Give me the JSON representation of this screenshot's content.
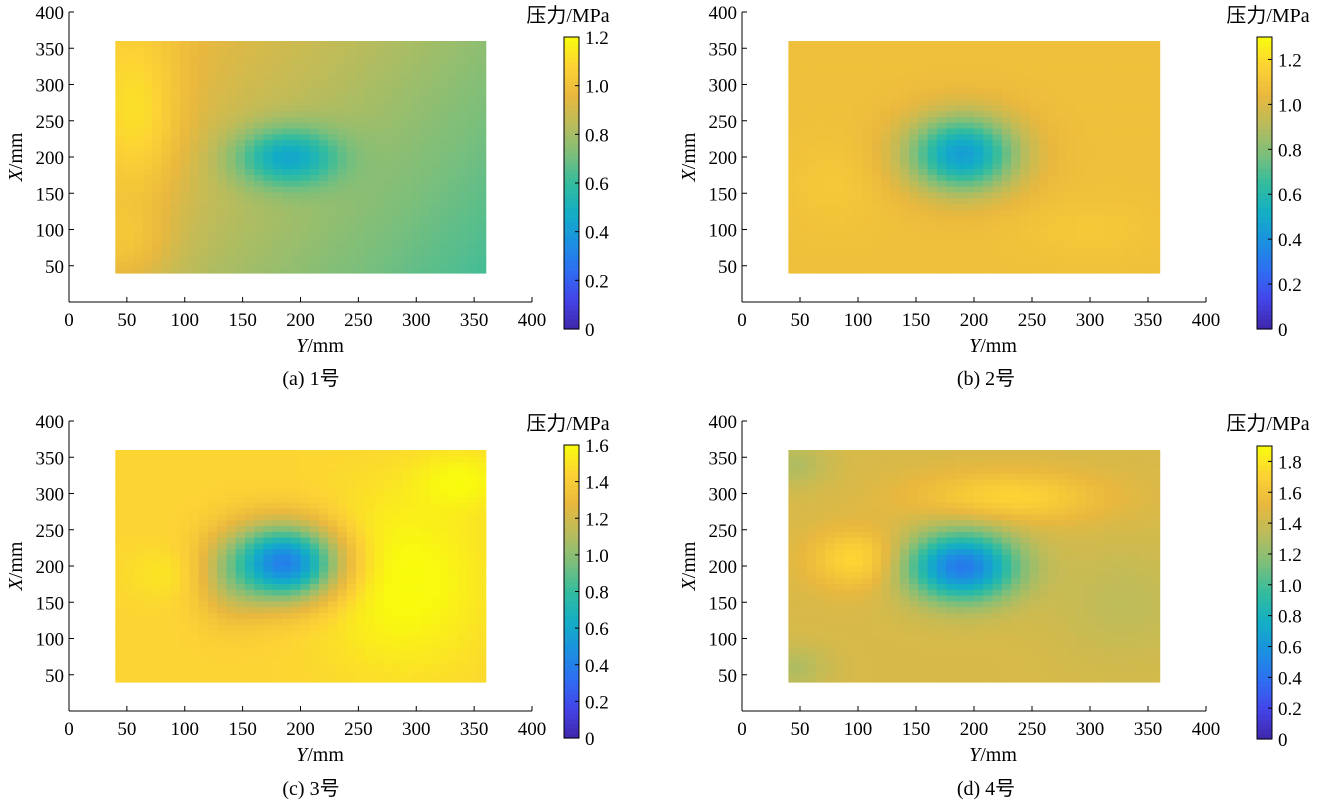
{
  "colormap": [
    "#3e26a8",
    "#4443e8",
    "#2f6df3",
    "#1b91e0",
    "#13aec5",
    "#33bc9e",
    "#7cbf7b",
    "#b9bc5c",
    "#e9b83e",
    "#fcd235",
    "#f9fb0e"
  ],
  "chart_data": [
    {
      "type": "heatmap",
      "caption": "(a)  1号",
      "xlabel_var": "Y",
      "xlabel_unit": "/mm",
      "ylabel_var": "X",
      "ylabel_unit": "/mm",
      "xlim": [
        0,
        400
      ],
      "ylim": [
        0,
        400
      ],
      "xticks": [
        0,
        50,
        100,
        150,
        200,
        250,
        300,
        350,
        400
      ],
      "yticks": [
        50,
        100,
        150,
        200,
        250,
        300,
        350,
        400
      ],
      "data_extent": {
        "x": [
          40,
          360
        ],
        "y": [
          40,
          360
        ]
      },
      "colorbar": {
        "title": "压力/MPa",
        "min": 0,
        "max": 1.2,
        "ticks": [
          "0",
          "0.2",
          "0.4",
          "0.6",
          "0.8",
          "1.0",
          "1.2"
        ]
      },
      "field": {
        "base": 0.82,
        "xslope": -0.0008,
        "xmid": 200,
        "yslope": 0.0004,
        "ymid": 200,
        "min_at": [
          190,
          200
        ],
        "min_value": 0.45,
        "spread": [
          42,
          38
        ],
        "bumps": [
          {
            "at": [
              60,
              250
            ],
            "value": 0.98,
            "spread": [
              40,
              120
            ]
          },
          {
            "at": [
              50,
              80
            ],
            "value": 0.93,
            "spread": [
              40,
              60
            ]
          }
        ]
      }
    },
    {
      "type": "heatmap",
      "caption": "(b)  2号",
      "xlabel_var": "Y",
      "xlabel_unit": "/mm",
      "ylabel_var": "X",
      "ylabel_unit": "/mm",
      "xlim": [
        0,
        400
      ],
      "ylim": [
        0,
        400
      ],
      "xticks": [
        0,
        50,
        100,
        150,
        200,
        250,
        300,
        350,
        400
      ],
      "yticks": [
        50,
        100,
        150,
        200,
        250,
        300,
        350,
        400
      ],
      "data_extent": {
        "x": [
          40,
          360
        ],
        "y": [
          40,
          360
        ]
      },
      "colorbar": {
        "title": "压力/MPa",
        "min": 0,
        "max": 1.3,
        "ticks": [
          "0",
          "0.2",
          "0.4",
          "0.6",
          "0.8",
          "1.0",
          "1.2"
        ]
      },
      "field": {
        "base": 1.08,
        "xslope": 0,
        "xmid": 200,
        "yslope": 0,
        "ymid": 200,
        "min_at": [
          190,
          205
        ],
        "min_value": 0.45,
        "spread": [
          45,
          50
        ],
        "bumps": [
          {
            "at": [
              80,
              160
            ],
            "value": 1.12,
            "spread": [
              40,
              60
            ]
          },
          {
            "at": [
              300,
              100
            ],
            "value": 1.12,
            "spread": [
              60,
              40
            ]
          }
        ]
      }
    },
    {
      "type": "heatmap",
      "caption": "(c)  3号",
      "xlabel_var": "Y",
      "xlabel_unit": "/mm",
      "ylabel_var": "X",
      "ylabel_unit": "/mm",
      "xlim": [
        0,
        400
      ],
      "ylim": [
        0,
        400
      ],
      "xticks": [
        0,
        50,
        100,
        150,
        200,
        250,
        300,
        350,
        400
      ],
      "yticks": [
        50,
        100,
        150,
        200,
        250,
        300,
        350,
        400
      ],
      "data_extent": {
        "x": [
          40,
          360
        ],
        "y": [
          40,
          360
        ]
      },
      "colorbar": {
        "title": "压力/MPa",
        "min": 0,
        "max": 1.6,
        "ticks": [
          "0",
          "0.2",
          "0.4",
          "0.6",
          "0.8",
          "1.0",
          "1.2",
          "1.4",
          "1.6"
        ]
      },
      "field": {
        "base": 1.45,
        "xslope": 0,
        "xmid": 200,
        "yslope": 0,
        "ymid": 200,
        "min_at": [
          185,
          205
        ],
        "min_value": 0.4,
        "spread": [
          45,
          50
        ],
        "bumps": [
          {
            "at": [
              290,
              180
            ],
            "value": 1.62,
            "spread": [
              70,
              120
            ]
          },
          {
            "at": [
              85,
              190
            ],
            "value": 1.52,
            "spread": [
              35,
              35
            ]
          },
          {
            "at": [
              340,
              320
            ],
            "value": 1.58,
            "spread": [
              40,
              40
            ]
          },
          {
            "at": [
              140,
              180
            ],
            "value": 1.25,
            "spread": [
              30,
              60
            ]
          }
        ]
      }
    },
    {
      "type": "heatmap",
      "caption": "(d)  4号",
      "xlabel_var": "Y",
      "xlabel_unit": "/mm",
      "ylabel_var": "X",
      "ylabel_unit": "/mm",
      "xlim": [
        0,
        400
      ],
      "ylim": [
        0,
        400
      ],
      "xticks": [
        0,
        50,
        100,
        150,
        200,
        250,
        300,
        350,
        400
      ],
      "yticks": [
        50,
        100,
        150,
        200,
        250,
        300,
        350,
        400
      ],
      "data_extent": {
        "x": [
          40,
          360
        ],
        "y": [
          40,
          360
        ]
      },
      "colorbar": {
        "title": "压力/MPa",
        "min": 0,
        "max": 1.9,
        "ticks": [
          "0",
          "0.2",
          "0.4",
          "0.6",
          "0.8",
          "1.0",
          "1.2",
          "1.4",
          "1.6",
          "1.8"
        ]
      },
      "field": {
        "base": 1.45,
        "xslope": 0,
        "xmid": 200,
        "yslope": 0,
        "ymid": 200,
        "min_at": [
          190,
          200
        ],
        "min_value": 0.45,
        "spread": [
          45,
          45
        ],
        "bumps": [
          {
            "at": [
              100,
              210
            ],
            "value": 1.75,
            "spread": [
              40,
              40
            ]
          },
          {
            "at": [
              230,
              295
            ],
            "value": 1.72,
            "spread": [
              80,
              35
            ]
          },
          {
            "at": [
              330,
              150
            ],
            "value": 1.35,
            "spread": [
              60,
              80
            ]
          },
          {
            "at": [
              45,
              340
            ],
            "value": 1.3,
            "spread": [
              30,
              30
            ]
          },
          {
            "at": [
              45,
              60
            ],
            "value": 1.3,
            "spread": [
              30,
              30
            ]
          }
        ]
      }
    }
  ]
}
